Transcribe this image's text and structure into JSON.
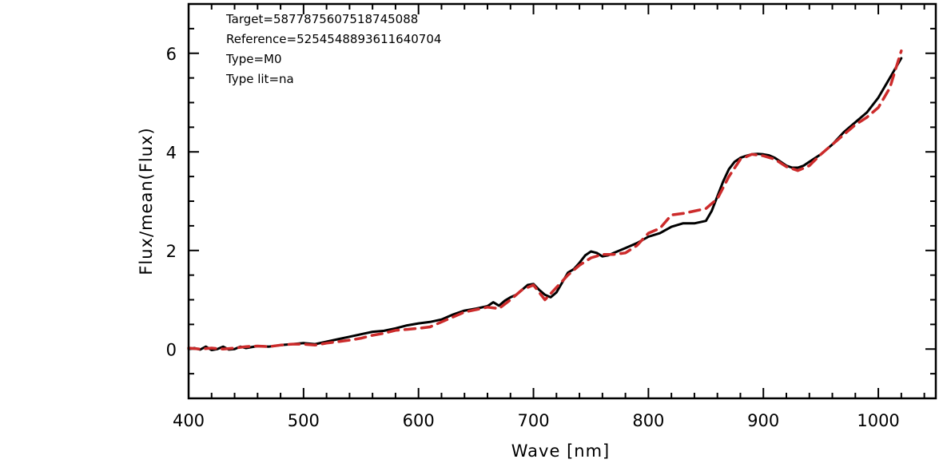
{
  "chart_data": {
    "type": "line",
    "xlabel": "Wave [nm]",
    "ylabel": "Flux/mean(Flux)",
    "xlim": [
      400,
      1050
    ],
    "ylim": [
      -1,
      7
    ],
    "x_ticks": [
      400,
      500,
      600,
      700,
      800,
      900,
      1000
    ],
    "y_ticks": [
      0,
      2,
      4,
      6
    ],
    "grid": false,
    "annotations": [
      "Target=5877875607518745088",
      "Reference=5254548893611640704",
      "Type=M0",
      "Type lit=na"
    ],
    "series": [
      {
        "color": "#000000",
        "style": "solid",
        "x": [
          400,
          405,
          410,
          415,
          420,
          425,
          430,
          435,
          440,
          445,
          450,
          460,
          470,
          480,
          490,
          500,
          510,
          520,
          530,
          540,
          550,
          560,
          570,
          580,
          590,
          600,
          610,
          620,
          630,
          640,
          650,
          660,
          665,
          670,
          675,
          680,
          685,
          690,
          695,
          700,
          705,
          710,
          715,
          720,
          725,
          730,
          735,
          740,
          745,
          750,
          755,
          760,
          765,
          770,
          780,
          790,
          800,
          810,
          820,
          830,
          840,
          850,
          855,
          860,
          865,
          870,
          875,
          880,
          885,
          890,
          895,
          900,
          905,
          910,
          915,
          920,
          925,
          930,
          935,
          940,
          950,
          960,
          970,
          980,
          990,
          1000,
          1010,
          1020
        ],
        "y": [
          0.0,
          0.02,
          -0.01,
          0.05,
          -0.02,
          0.0,
          0.05,
          -0.01,
          0.0,
          0.05,
          0.02,
          0.06,
          0.05,
          0.08,
          0.1,
          0.12,
          0.1,
          0.15,
          0.2,
          0.25,
          0.3,
          0.35,
          0.37,
          0.42,
          0.48,
          0.52,
          0.55,
          0.6,
          0.7,
          0.78,
          0.82,
          0.87,
          0.95,
          0.88,
          0.98,
          1.05,
          1.1,
          1.2,
          1.3,
          1.32,
          1.2,
          1.1,
          1.05,
          1.15,
          1.35,
          1.55,
          1.62,
          1.75,
          1.9,
          1.98,
          1.95,
          1.88,
          1.9,
          1.95,
          2.05,
          2.15,
          2.28,
          2.35,
          2.48,
          2.55,
          2.55,
          2.6,
          2.8,
          3.1,
          3.4,
          3.65,
          3.8,
          3.88,
          3.92,
          3.95,
          3.96,
          3.95,
          3.93,
          3.88,
          3.8,
          3.72,
          3.68,
          3.68,
          3.72,
          3.8,
          3.95,
          4.15,
          4.4,
          4.6,
          4.8,
          5.1,
          5.5,
          5.9
        ]
      },
      {
        "color": "#cc2b2b",
        "style": "dashed",
        "x": [
          400,
          410,
          420,
          430,
          440,
          450,
          460,
          470,
          480,
          490,
          500,
          510,
          520,
          530,
          540,
          550,
          560,
          570,
          580,
          590,
          600,
          610,
          620,
          630,
          640,
          650,
          660,
          670,
          680,
          690,
          700,
          710,
          720,
          730,
          740,
          750,
          760,
          770,
          780,
          790,
          800,
          810,
          820,
          830,
          840,
          850,
          860,
          870,
          880,
          890,
          900,
          910,
          920,
          930,
          940,
          950,
          960,
          970,
          980,
          990,
          1000,
          1010,
          1020
        ],
        "y": [
          0.02,
          0.0,
          0.02,
          0.0,
          0.02,
          0.05,
          0.06,
          0.05,
          0.08,
          0.1,
          0.1,
          0.08,
          0.12,
          0.15,
          0.18,
          0.22,
          0.28,
          0.32,
          0.38,
          0.4,
          0.42,
          0.45,
          0.55,
          0.65,
          0.75,
          0.8,
          0.85,
          0.82,
          1.0,
          1.2,
          1.3,
          1.0,
          1.25,
          1.5,
          1.7,
          1.85,
          1.92,
          1.92,
          1.95,
          2.1,
          2.35,
          2.45,
          2.72,
          2.75,
          2.8,
          2.85,
          3.05,
          3.5,
          3.85,
          3.95,
          3.92,
          3.85,
          3.7,
          3.62,
          3.72,
          3.95,
          4.15,
          4.35,
          4.55,
          4.7,
          4.9,
          5.3,
          6.05
        ]
      }
    ]
  }
}
